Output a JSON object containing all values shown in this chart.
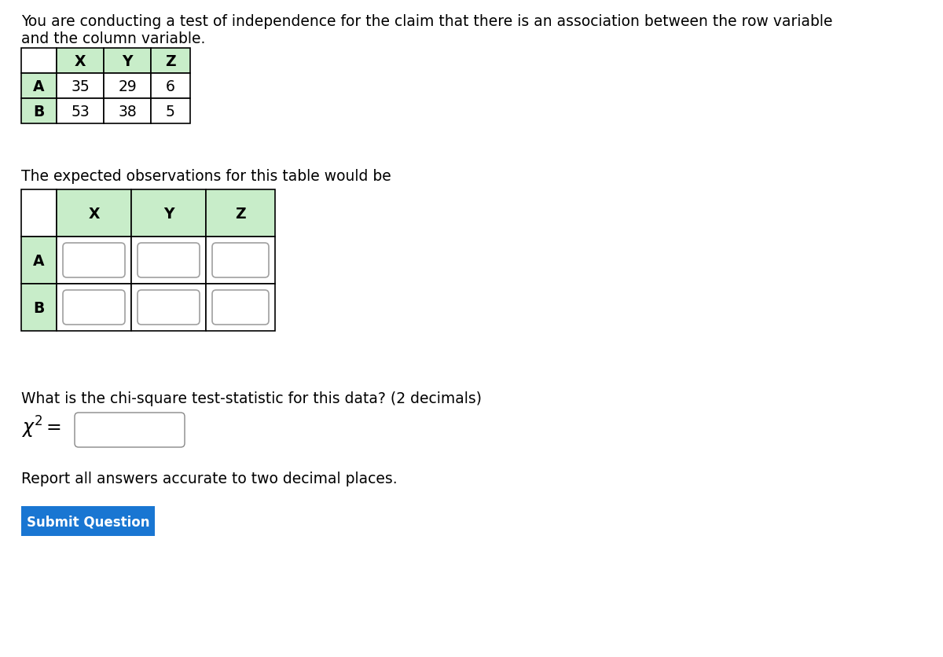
{
  "title_line1": "You are conducting a test of independence for the claim that there is an association between the row variable",
  "title_line2": "and the column variable.",
  "obs_table_header": [
    "",
    "X",
    "Y",
    "Z"
  ],
  "obs_table_rows": [
    [
      "A",
      "35",
      "29",
      "6"
    ],
    [
      "B",
      "53",
      "38",
      "5"
    ]
  ],
  "expected_text": "The expected observations for this table would be",
  "exp_table_header": [
    "",
    "X",
    "Y",
    "Z"
  ],
  "exp_table_rows": [
    [
      "A",
      "",
      "",
      ""
    ],
    [
      "B",
      "",
      "",
      ""
    ]
  ],
  "chi_sq_text": "What is the chi-square test-statistic for this data? (2 decimals)",
  "report_text": "Report all answers accurate to two decimal places.",
  "submit_text": "Submit Question",
  "header_fill": "#c8edc9",
  "row_label_fill": "#c8edc9",
  "topleft_fill": "#ffffff",
  "data_fill": "#ffffff",
  "border_color": "#000000",
  "submit_bg": "#1976d2",
  "submit_text_color": "#ffffff",
  "bg_color": "#ffffff",
  "text_color": "#000000",
  "title_fontsize": 13.5,
  "body_fontsize": 13.5,
  "table_fontsize": 13.5
}
